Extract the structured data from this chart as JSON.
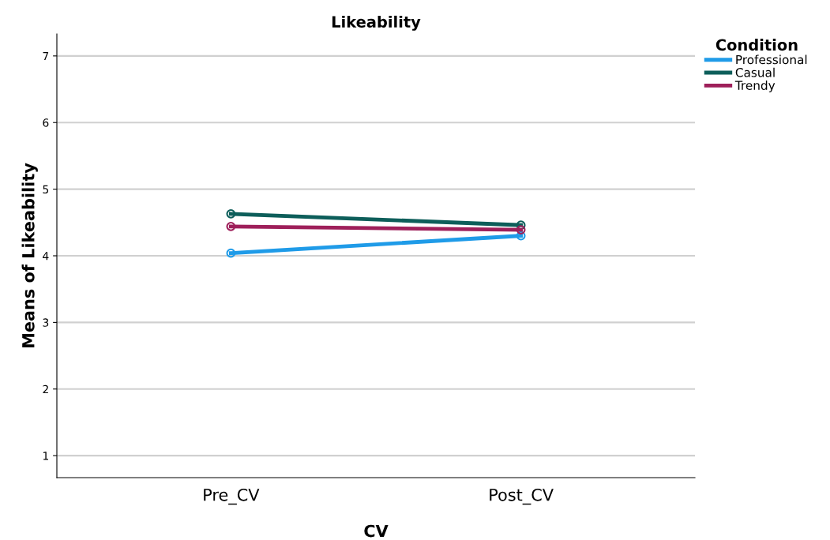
{
  "chart_data": {
    "type": "line",
    "title": "Likeability",
    "xlabel": "CV",
    "ylabel": "Means of Likeability",
    "legend_title": "Condition",
    "categories": [
      "Pre_CV",
      "Post_CV"
    ],
    "series": [
      {
        "name": "Professional",
        "color": "#1f9be8",
        "values": [
          4.04,
          4.3
        ]
      },
      {
        "name": "Casual",
        "color": "#0d5e5a",
        "values": [
          4.63,
          4.46
        ]
      },
      {
        "name": "Trendy",
        "color": "#9e1f5a",
        "values": [
          4.44,
          4.39
        ]
      }
    ],
    "ylim": [
      0.67,
      7.33
    ],
    "yticks": [
      1,
      2,
      3,
      4,
      5,
      6,
      7
    ],
    "grid": "y",
    "legend": "top right",
    "marker": "circle",
    "line_style": "solid"
  }
}
